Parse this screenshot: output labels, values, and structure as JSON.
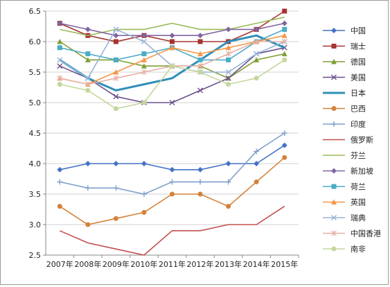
{
  "chart_data": {
    "type": "line",
    "title": "",
    "xlabel": "",
    "ylabel": "",
    "categories": [
      "2007年",
      "2008年",
      "2009年",
      "2010年",
      "2011年",
      "2012年",
      "2013年",
      "2014年",
      "2015年"
    ],
    "ylim": [
      2.5,
      6.5
    ],
    "yticks": [
      "2.5",
      "3.0",
      "3.5",
      "4.0",
      "4.5",
      "5.0",
      "5.5",
      "6.0",
      "6.5"
    ],
    "grid": true,
    "legend_position": "right",
    "series": [
      {
        "name": "中国",
        "color": "#4472C4",
        "marker": "diamond",
        "values": [
          3.9,
          4.0,
          4.0,
          4.0,
          3.9,
          3.9,
          4.0,
          4.0,
          4.3
        ]
      },
      {
        "name": "瑞士",
        "color": "#A5332F",
        "marker": "square",
        "values": [
          6.3,
          6.1,
          6.0,
          6.1,
          6.0,
          6.0,
          6.0,
          6.2,
          6.5
        ]
      },
      {
        "name": "德国",
        "color": "#7F9F34",
        "marker": "triangle",
        "values": [
          6.0,
          5.7,
          5.7,
          5.6,
          5.6,
          5.6,
          5.4,
          5.7,
          5.8
        ]
      },
      {
        "name": "美国",
        "color": "#6B4E8D",
        "marker": "x",
        "values": [
          5.6,
          5.4,
          5.1,
          5.0,
          5.0,
          5.2,
          5.4,
          5.8,
          5.9
        ]
      },
      {
        "name": "日本",
        "color": "#2F8FB8",
        "marker": "none",
        "thick": true,
        "values": [
          5.7,
          5.4,
          5.2,
          5.3,
          5.4,
          5.7,
          6.0,
          6.1,
          5.9
        ]
      },
      {
        "name": "巴西",
        "color": "#D4823A",
        "marker": "circle",
        "values": [
          3.3,
          3.0,
          3.1,
          3.2,
          3.5,
          3.5,
          3.3,
          3.7,
          4.1
        ]
      },
      {
        "name": "印度",
        "color": "#7FA0CC",
        "marker": "plus",
        "values": [
          3.7,
          3.6,
          3.6,
          3.5,
          3.7,
          3.7,
          3.7,
          4.2,
          4.5
        ]
      },
      {
        "name": "俄罗斯",
        "color": "#C0504D",
        "marker": "none",
        "values": [
          2.9,
          2.7,
          2.6,
          2.5,
          2.9,
          2.9,
          3.0,
          3.0,
          3.3
        ]
      },
      {
        "name": "芬兰",
        "color": "#9BBB59",
        "marker": "none",
        "values": [
          6.2,
          6.1,
          6.2,
          6.2,
          6.3,
          6.2,
          6.2,
          6.3,
          6.4
        ]
      },
      {
        "name": "新加坡",
        "color": "#8064A2",
        "marker": "diamond",
        "values": [
          6.3,
          6.2,
          6.1,
          6.1,
          6.1,
          6.1,
          6.2,
          6.2,
          6.3
        ]
      },
      {
        "name": "荷兰",
        "color": "#4BACC6",
        "marker": "square",
        "values": [
          5.9,
          5.8,
          5.7,
          5.8,
          5.9,
          5.7,
          5.7,
          6.0,
          6.2
        ]
      },
      {
        "name": "英国",
        "color": "#F79646",
        "marker": "triangle",
        "values": [
          5.4,
          5.3,
          5.5,
          5.7,
          5.9,
          5.8,
          5.9,
          6.0,
          6.1
        ]
      },
      {
        "name": "瑞典",
        "color": "#95B3D7",
        "marker": "x",
        "values": [
          5.7,
          5.4,
          6.2,
          6.0,
          5.6,
          5.5,
          5.5,
          5.8,
          6.0
        ]
      },
      {
        "name": "中国香港",
        "color": "#E6B0A6",
        "marker": "asterisk",
        "values": [
          5.4,
          5.3,
          5.4,
          5.5,
          5.6,
          5.6,
          5.8,
          6.0,
          6.0
        ]
      },
      {
        "name": "南非",
        "color": "#C4D79B",
        "marker": "circle",
        "values": [
          5.3,
          5.2,
          4.9,
          5.0,
          5.6,
          5.5,
          5.3,
          5.4,
          5.7
        ]
      }
    ]
  }
}
